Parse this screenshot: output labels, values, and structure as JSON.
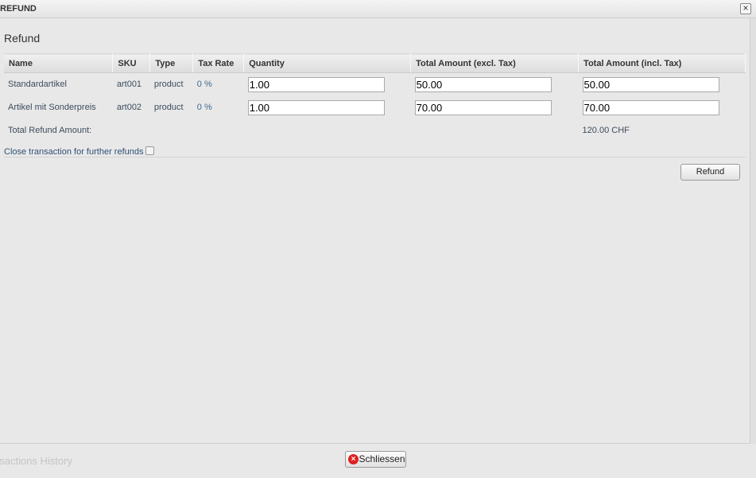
{
  "window": {
    "title": "REFUND",
    "close_icon": "close-icon"
  },
  "section_title": "Refund",
  "table": {
    "headers": [
      "Name",
      "SKU",
      "Type",
      "Tax Rate",
      "Quantity",
      "Total Amount (excl. Tax)",
      "Total Amount (incl. Tax)"
    ],
    "rows": [
      {
        "name": "Standardartikel",
        "sku": "art001",
        "type": "product",
        "tax": "0 %",
        "qty": "1.00",
        "excl": "50.00",
        "incl": "50.00"
      },
      {
        "name": "Artikel mit Sonderpreis",
        "sku": "art002",
        "type": "product",
        "tax": "0 %",
        "qty": "1.00",
        "excl": "70.00",
        "incl": "70.00"
      }
    ],
    "total_label": "Total Refund Amount:",
    "total_value": "120.00 CHF"
  },
  "close_transaction_label": "Close transaction for further refunds",
  "close_transaction_checked": false,
  "refund_button": "Refund",
  "history_tab": "nsactions History",
  "close_button": "Schliessen"
}
